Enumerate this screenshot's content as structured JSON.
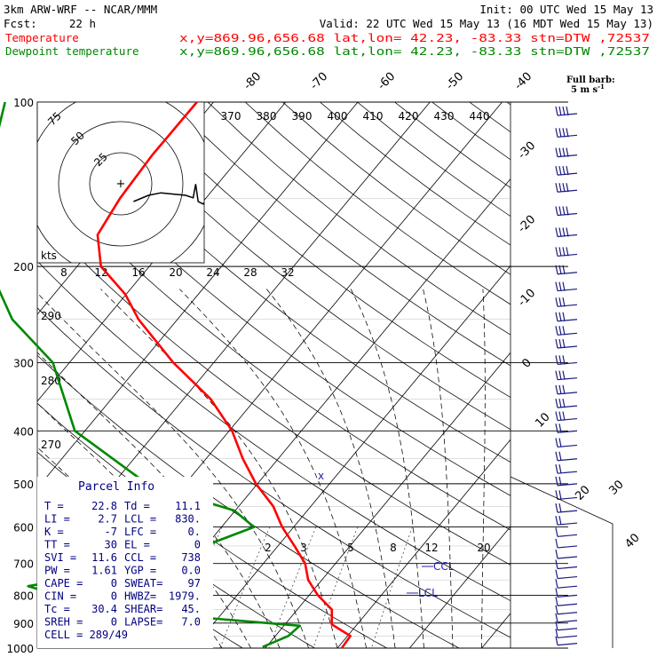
{
  "header": {
    "model": "3km ARW-WRF -- NCAR/MMM",
    "init": "Init: 00 UTC Wed 15 May 13",
    "fcst_label": "Fcst:",
    "fcst_value": "22 h",
    "valid": "Valid: 22 UTC Wed 15 May 13 (16 MDT Wed 15 May 13)",
    "line_temp": {
      "name": "Temperature",
      "info": "x,y=869.96,656.68   lat,lon= 42.23, -83.33  stn=DTW ,72537",
      "color": "#ff0000"
    },
    "line_dew": {
      "name": "Dewpoint temperature",
      "info": "x,y=869.96,656.68   lat,lon= 42.23, -83.33  stn=DTW ,72537",
      "color": "#008800"
    }
  },
  "barb_legend": {
    "line1": "Full barb:",
    "line2": "5 m s",
    "exp": "-1"
  },
  "hodograph": {
    "units": "kts",
    "ring_labels": [
      "25",
      "50",
      "75"
    ]
  },
  "parcel_info": {
    "title": "Parcel Info",
    "rows": [
      [
        "T  =",
        "22.8",
        "Td =",
        "11.1"
      ],
      [
        "LI =",
        "2.7",
        "LCL =",
        "830."
      ],
      [
        "K  =",
        "-7",
        "LFC =",
        "0."
      ],
      [
        "TT =",
        "30",
        "EL  =",
        "0"
      ],
      [
        "SVI =",
        "11.6",
        "CCL =",
        "738"
      ],
      [
        "PW =",
        "1.61",
        "YGP =",
        "0.0"
      ],
      [
        "CAPE =",
        "0",
        "SWEAT=",
        "97"
      ],
      [
        "CIN =",
        "0",
        "HWBZ=",
        "1979."
      ],
      [
        "Tc =",
        "30.4",
        "SHEAR=",
        "45."
      ],
      [
        "SREH =",
        "0",
        "LAPSE=",
        "7.0"
      ]
    ],
    "cell": "CELL = 289/49"
  },
  "markers": {
    "ccl": "CCL",
    "lcl": "LCL"
  },
  "chart_data": {
    "type": "line",
    "title": "",
    "ylabel": "",
    "xlabel": "",
    "y_scale": "log",
    "pressure_levels": [
      "100",
      "200",
      "300",
      "400",
      "500",
      "600",
      "700",
      "800",
      "900",
      "1000"
    ],
    "pressure_range": [
      100,
      1000
    ],
    "temperature_isotherm_labels": [
      "-80",
      "-70",
      "-60",
      "-50",
      "-40",
      "-30",
      "-20",
      "-10",
      "0",
      "10",
      "20",
      "30",
      "40"
    ],
    "theta_labels_top": [
      "370",
      "380",
      "390",
      "400",
      "410",
      "420",
      "430",
      "440"
    ],
    "theta_labels_left": [
      "290",
      "280",
      "270"
    ],
    "mixing_ratio_labels_upper": [
      "8",
      "12",
      "16",
      "20",
      "24",
      "28",
      "32"
    ],
    "mixing_ratio_labels_lower": [
      "2",
      "3",
      "5",
      "8",
      "12",
      "20"
    ],
    "grid": true,
    "legend_position": "top-left",
    "series": [
      {
        "name": "Temperature",
        "color": "#ff0000",
        "points": [
          [
            999,
            20.6
          ],
          [
            950,
            20.4
          ],
          [
            905,
            16.5
          ],
          [
            850,
            14.8
          ],
          [
            800,
            11.2
          ],
          [
            750,
            8.1
          ],
          [
            700,
            5.8
          ],
          [
            650,
            2.3
          ],
          [
            600,
            -1.6
          ],
          [
            550,
            -5.2
          ],
          [
            500,
            -10.2
          ],
          [
            450,
            -14.9
          ],
          [
            400,
            -19.6
          ],
          [
            350,
            -26.2
          ],
          [
            300,
            -35.6
          ],
          [
            250,
            -45.4
          ],
          [
            225,
            -50.1
          ],
          [
            200,
            -56.7
          ],
          [
            175,
            -60.8
          ],
          [
            150,
            -61.9
          ],
          [
            125,
            -62.4
          ],
          [
            100,
            -62.3
          ]
        ]
      },
      {
        "name": "Dewpoint temperature",
        "color": "#008800",
        "points": [
          [
            995,
            9.5
          ],
          [
            950,
            11.8
          ],
          [
            910,
            12.2
          ],
          [
            850,
            -16.4
          ],
          [
            770,
            -30.0
          ],
          [
            700,
            -14.6
          ],
          [
            600,
            -5.5
          ],
          [
            560,
            -10.1
          ],
          [
            500,
            -25.3
          ],
          [
            400,
            -41.4
          ],
          [
            300,
            -52.3
          ],
          [
            250,
            -62.9
          ],
          [
            200,
            -72.3
          ],
          [
            160,
            -79.6
          ],
          [
            125,
            -84.6
          ],
          [
            100,
            -88.9
          ]
        ]
      }
    ],
    "wind_barbs_units": "m s-1",
    "hodograph_trace_kts": [
      [
        -4,
        0
      ],
      [
        8,
        -5
      ],
      [
        18,
        -7
      ],
      [
        28,
        -6
      ],
      [
        38,
        -5
      ],
      [
        44,
        -3
      ],
      [
        46,
        -14
      ],
      [
        48,
        0
      ],
      [
        52,
        2
      ],
      [
        55,
        -2
      ]
    ]
  }
}
